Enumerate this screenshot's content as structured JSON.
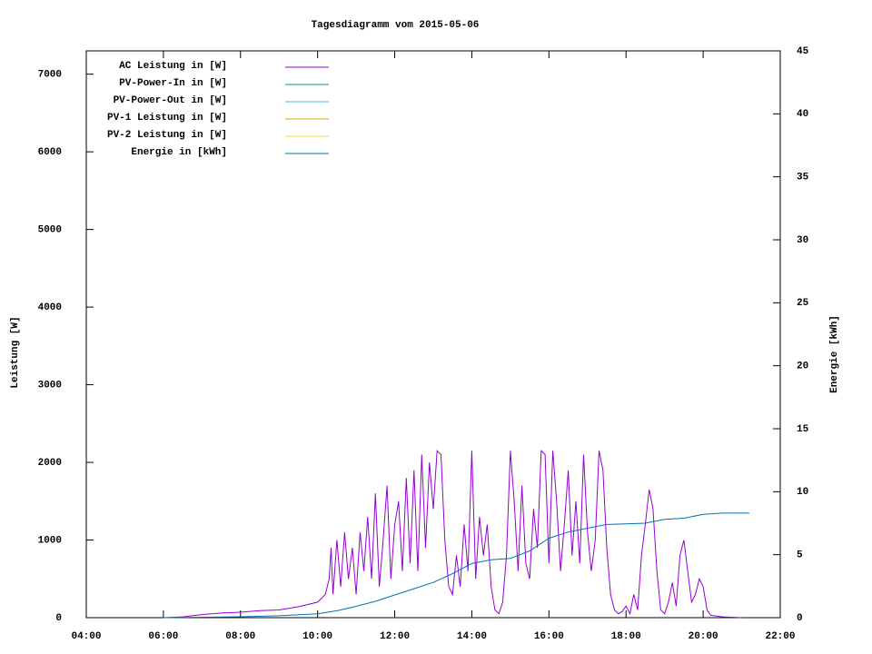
{
  "chart_data": {
    "type": "line",
    "title": "Tagesdiagramm vom 2015-05-06",
    "ylabel": "Leistung [W]",
    "y2label": "Energie [kWh]",
    "xlim": [
      4,
      22
    ],
    "xticks": [
      {
        "value": 4,
        "label": "04:00"
      },
      {
        "value": 6,
        "label": "06:00"
      },
      {
        "value": 8,
        "label": "08:00"
      },
      {
        "value": 10,
        "label": "10:00"
      },
      {
        "value": 12,
        "label": "12:00"
      },
      {
        "value": 14,
        "label": "14:00"
      },
      {
        "value": 16,
        "label": "16:00"
      },
      {
        "value": 18,
        "label": "18:00"
      },
      {
        "value": 20,
        "label": "20:00"
      },
      {
        "value": 22,
        "label": "22:00"
      }
    ],
    "ylim": [
      0,
      7300
    ],
    "yticks": [
      0,
      1000,
      2000,
      3000,
      4000,
      5000,
      6000,
      7000
    ],
    "y2lim": [
      0,
      45
    ],
    "y2ticks": [
      0,
      5,
      10,
      15,
      20,
      25,
      30,
      35,
      40,
      45
    ],
    "legend": "top-left",
    "series": [
      {
        "name": "AC Leistung in [W]",
        "color": "#9400d3",
        "x": [
          6.0,
          6.5,
          7.0,
          7.5,
          8.0,
          8.5,
          9.0,
          9.5,
          10.0,
          10.2,
          10.3,
          10.35,
          10.4,
          10.5,
          10.6,
          10.7,
          10.8,
          10.9,
          11.0,
          11.1,
          11.2,
          11.3,
          11.4,
          11.5,
          11.6,
          11.7,
          11.8,
          11.9,
          12.0,
          12.1,
          12.2,
          12.3,
          12.4,
          12.5,
          12.6,
          12.7,
          12.8,
          12.9,
          13.0,
          13.1,
          13.2,
          13.3,
          13.4,
          13.5,
          13.6,
          13.7,
          13.8,
          13.9,
          14.0,
          14.1,
          14.2,
          14.3,
          14.4,
          14.5,
          14.6,
          14.7,
          14.8,
          14.9,
          15.0,
          15.1,
          15.2,
          15.3,
          15.4,
          15.5,
          15.6,
          15.7,
          15.8,
          15.9,
          16.0,
          16.1,
          16.2,
          16.3,
          16.4,
          16.5,
          16.6,
          16.7,
          16.8,
          16.9,
          17.0,
          17.1,
          17.2,
          17.3,
          17.4,
          17.5,
          17.6,
          17.7,
          17.8,
          17.9,
          18.0,
          18.1,
          18.2,
          18.3,
          18.4,
          18.5,
          18.6,
          18.7,
          18.8,
          18.9,
          19.0,
          19.1,
          19.2,
          19.3,
          19.4,
          19.5,
          19.6,
          19.7,
          19.8,
          19.9,
          20.0,
          20.1,
          20.2,
          20.5,
          21.0
        ],
        "values": [
          0,
          10,
          40,
          60,
          70,
          90,
          100,
          140,
          200,
          300,
          500,
          900,
          300,
          1000,
          400,
          1100,
          500,
          900,
          300,
          1100,
          600,
          1300,
          500,
          1600,
          400,
          1000,
          1700,
          500,
          1200,
          1500,
          600,
          1800,
          700,
          1900,
          600,
          2100,
          900,
          2000,
          1400,
          2150,
          2100,
          1000,
          400,
          300,
          800,
          400,
          1200,
          600,
          2150,
          500,
          1300,
          800,
          1200,
          400,
          100,
          50,
          200,
          800,
          2150,
          1500,
          600,
          1700,
          700,
          500,
          1400,
          900,
          2150,
          2100,
          700,
          2150,
          1500,
          600,
          1200,
          1900,
          800,
          1500,
          700,
          2100,
          1100,
          600,
          1000,
          2150,
          1900,
          900,
          300,
          100,
          50,
          80,
          150,
          50,
          300,
          100,
          800,
          1200,
          1650,
          1400,
          600,
          100,
          50,
          200,
          450,
          150,
          800,
          1000,
          600,
          200,
          300,
          500,
          400,
          100,
          30,
          10,
          0
        ]
      },
      {
        "name": "PV-Power-In in [W]",
        "color": "#009e73"
      },
      {
        "name": "PV-Power-Out in [W]",
        "color": "#56b4e9"
      },
      {
        "name": "PV-1 Leistung in [W]",
        "color": "#e69f00"
      },
      {
        "name": "PV-2 Leistung in [W]",
        "color": "#f0e442"
      },
      {
        "name": "Energie in [kWh]",
        "color": "#0072b2",
        "axis": "y2",
        "x": [
          6,
          8,
          9,
          10,
          10.5,
          11,
          11.5,
          12,
          12.5,
          13,
          13.5,
          14,
          14.5,
          15,
          15.5,
          16,
          16.5,
          17,
          17.5,
          18,
          18.5,
          19,
          19.5,
          20,
          20.5,
          21.2
        ],
        "values": [
          0,
          0.07,
          0.15,
          0.3,
          0.55,
          0.9,
          1.3,
          1.8,
          2.3,
          2.8,
          3.5,
          4.3,
          4.6,
          4.7,
          5.3,
          6.3,
          6.8,
          7.1,
          7.4,
          7.45,
          7.5,
          7.8,
          7.9,
          8.2,
          8.3,
          8.3
        ]
      }
    ]
  }
}
